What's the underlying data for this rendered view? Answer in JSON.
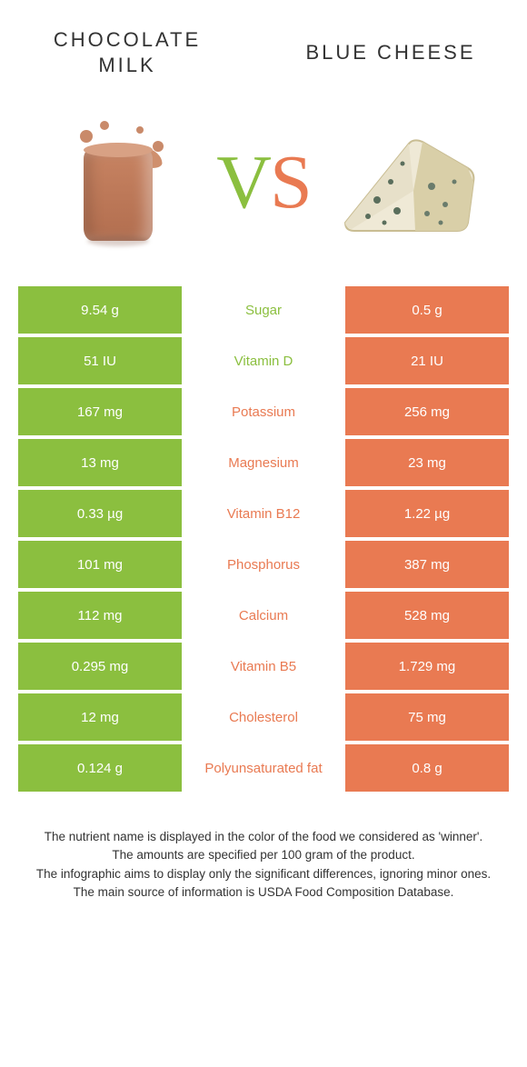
{
  "colors": {
    "left": "#8bbf3f",
    "right": "#e97a52",
    "text": "#333333",
    "white": "#ffffff"
  },
  "left_title": "CHOCOLATE\nMILK",
  "right_title": "BLUE CHEESE",
  "vs_left_char": "V",
  "vs_right_char": "S",
  "rows": [
    {
      "left": "9.54 g",
      "label": "Sugar",
      "right": "0.5 g",
      "winner": "left"
    },
    {
      "left": "51 IU",
      "label": "Vitamin D",
      "right": "21 IU",
      "winner": "left"
    },
    {
      "left": "167 mg",
      "label": "Potassium",
      "right": "256 mg",
      "winner": "right"
    },
    {
      "left": "13 mg",
      "label": "Magnesium",
      "right": "23 mg",
      "winner": "right"
    },
    {
      "left": "0.33 µg",
      "label": "Vitamin B12",
      "right": "1.22 µg",
      "winner": "right"
    },
    {
      "left": "101 mg",
      "label": "Phosphorus",
      "right": "387 mg",
      "winner": "right"
    },
    {
      "left": "112 mg",
      "label": "Calcium",
      "right": "528 mg",
      "winner": "right"
    },
    {
      "left": "0.295 mg",
      "label": "Vitamin B5",
      "right": "1.729 mg",
      "winner": "right"
    },
    {
      "left": "12 mg",
      "label": "Cholesterol",
      "right": "75 mg",
      "winner": "right"
    },
    {
      "left": "0.124 g",
      "label": "Polyunsaturated fat",
      "right": "0.8 g",
      "winner": "right"
    }
  ],
  "footer_lines": [
    "The nutrient name is displayed in the color of the food we considered as 'winner'.",
    "The amounts are specified per 100 gram of the product.",
    "The infographic aims to display only the significant differences, ignoring minor ones.",
    "The main source of information is USDA Food Composition Database."
  ]
}
